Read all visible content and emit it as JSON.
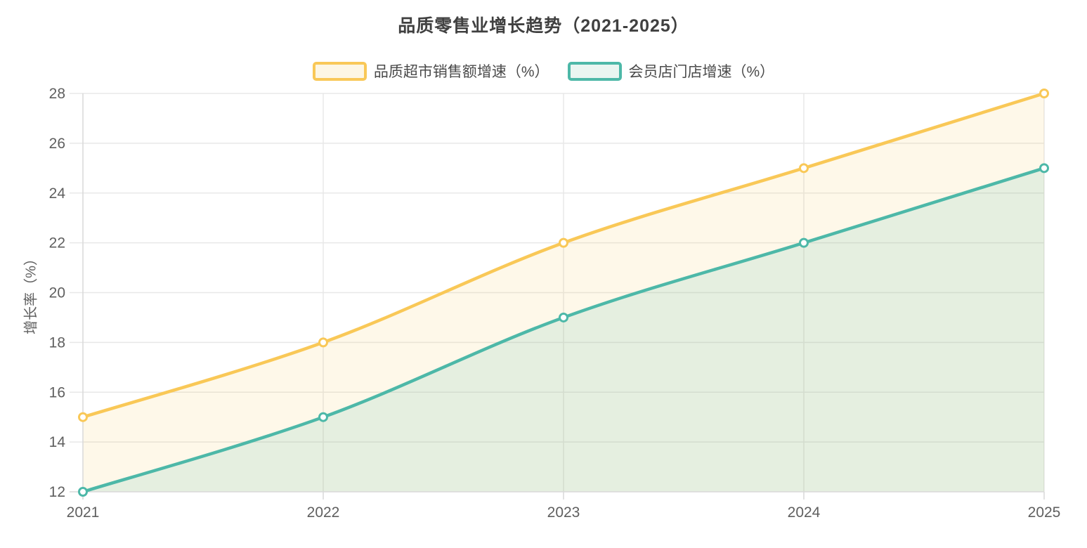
{
  "page": {
    "background": "#ffffff"
  },
  "chart_data": {
    "type": "line",
    "title": "品质零售业增长趋势（2021-2025）",
    "ylabel": "增长率（%）",
    "x": [
      "2021",
      "2022",
      "2023",
      "2024",
      "2025"
    ],
    "series": [
      {
        "name": "品质超市销售额增速（%）",
        "color": "#F9C857",
        "fill": "rgba(249,200,87,0.13)",
        "swatch_fill": "#FDF6E3",
        "values": [
          15,
          18,
          22,
          25,
          28
        ]
      },
      {
        "name": "会员店门店增速（%）",
        "color": "#4DB8A8",
        "fill": "rgba(77,184,168,0.14)",
        "swatch_fill": "#E9F5F1",
        "values": [
          12,
          15,
          19,
          22,
          25
        ]
      }
    ],
    "ylim": [
      12,
      28
    ],
    "ytick_step": 2,
    "yticks": [
      12,
      14,
      16,
      18,
      20,
      22,
      24,
      26,
      28
    ],
    "grid": true,
    "smooth": true,
    "legend_position": "top",
    "marker": "hollow-circle"
  },
  "style": {
    "grid_color": "#E8E8E8",
    "axis_color": "#D9D9D9",
    "tick_label_color": "#5F5F5F",
    "title_color": "#404040",
    "legend_text_color": "#4A4A4A",
    "marker_fill": "#FFFFFF"
  }
}
